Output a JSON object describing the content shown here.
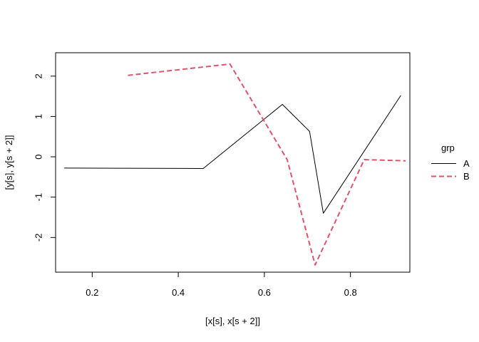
{
  "chart_data": {
    "type": "line",
    "xlabel": "[x[s], x[s + 2]]",
    "ylabel": "[y[s], y[s + 2]]",
    "xlim": [
      0.115,
      0.938
    ],
    "ylim": [
      -2.86,
      2.58
    ],
    "xticks": [
      0.2,
      0.4,
      0.6,
      0.8
    ],
    "yticks": [
      -2,
      -1,
      0,
      1,
      2
    ],
    "grid": false,
    "legend": {
      "title": "grp",
      "placement": "right",
      "entries": [
        "A",
        "B"
      ]
    },
    "series": [
      {
        "name": "A",
        "color": "#000000",
        "dash": "solid",
        "points": [
          [
            0.135,
            -0.28
          ],
          [
            0.458,
            -0.29
          ],
          [
            0.642,
            1.3
          ],
          [
            0.705,
            0.63
          ],
          [
            0.737,
            -1.4
          ],
          [
            0.917,
            1.52
          ]
        ]
      },
      {
        "name": "B",
        "color": "#DF536B",
        "dash": "dashed",
        "points": [
          [
            0.283,
            2.02
          ],
          [
            0.52,
            2.3
          ],
          [
            0.653,
            -0.07
          ],
          [
            0.718,
            -2.68
          ],
          [
            0.832,
            -0.07
          ],
          [
            0.928,
            -0.1
          ]
        ]
      }
    ]
  }
}
